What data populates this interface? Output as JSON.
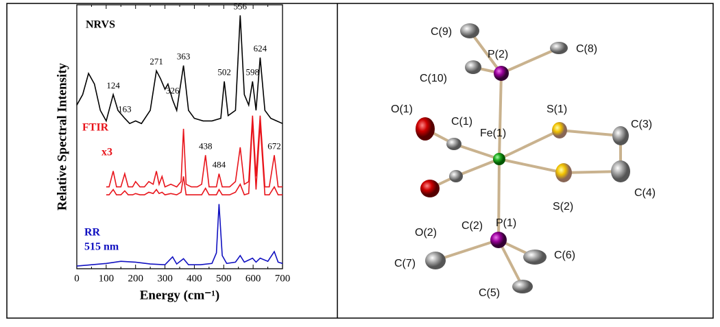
{
  "chart_data": {
    "type": "line",
    "x_label": "Energy (cm⁻¹)",
    "y_label": "Relative Spectral Intensity",
    "xlim": [
      0,
      700
    ],
    "xticks": [
      0,
      100,
      200,
      300,
      400,
      500,
      600,
      700
    ],
    "ylim": [
      0,
      100
    ],
    "series": [
      {
        "name": "NRVS",
        "color": "#000000",
        "x": [
          0,
          20,
          40,
          60,
          80,
          100,
          124,
          140,
          163,
          180,
          200,
          220,
          250,
          271,
          285,
          300,
          310,
          326,
          340,
          363,
          380,
          400,
          430,
          460,
          490,
          502,
          515,
          540,
          556,
          570,
          585,
          598,
          610,
          624,
          640,
          660,
          680,
          700
        ],
        "values": [
          62,
          66,
          74,
          70,
          60,
          56,
          66,
          60,
          57,
          55,
          56,
          55,
          60,
          75,
          72,
          68,
          70,
          64,
          60,
          77,
          60,
          57,
          56,
          56,
          57,
          71,
          58,
          60,
          96,
          66,
          62,
          71,
          60,
          80,
          60,
          57,
          56,
          55
        ],
        "peaks": [
          124,
          163,
          271,
          326,
          363,
          502,
          556,
          598,
          624
        ]
      },
      {
        "name": "FTIR",
        "note": "x3",
        "color": "#e8141b",
        "x": [
          100,
          110,
          124,
          135,
          150,
          163,
          175,
          190,
          200,
          215,
          230,
          245,
          260,
          271,
          280,
          290,
          300,
          320,
          340,
          355,
          363,
          372,
          390,
          410,
          425,
          438,
          450,
          465,
          475,
          484,
          495,
          520,
          540,
          556,
          570,
          585,
          598,
          610,
          624,
          640,
          655,
          672,
          685,
          700
        ],
        "values": [
          28,
          28,
          30,
          28,
          28,
          29.5,
          28,
          28,
          28.5,
          28,
          28,
          29,
          28.5,
          30,
          28.5,
          29,
          28,
          28.5,
          28,
          29,
          35,
          28,
          28,
          28,
          28,
          30.5,
          28,
          28,
          28,
          30,
          28,
          28,
          29,
          32,
          28,
          28.5,
          56,
          30,
          55,
          28,
          28,
          31,
          28,
          28
        ],
        "values_x3": [
          31,
          31,
          37,
          31,
          31,
          36,
          31,
          31,
          33,
          31,
          31,
          33,
          32,
          37,
          32,
          35,
          31,
          32,
          31,
          33,
          53,
          32,
          31,
          31,
          32,
          43,
          31,
          31,
          31,
          36,
          31,
          31,
          33,
          46,
          32,
          33,
          58,
          35,
          58,
          31,
          31,
          43,
          31,
          31
        ],
        "peaks": [
          438,
          484,
          672
        ]
      },
      {
        "name": "RR",
        "note": "515 nm",
        "color": "#1010c0",
        "x": [
          0,
          50,
          100,
          150,
          200,
          250,
          300,
          326,
          340,
          363,
          380,
          420,
          460,
          475,
          484,
          495,
          510,
          540,
          556,
          570,
          598,
          610,
          624,
          650,
          672,
          685,
          700
        ],
        "values": [
          1,
          1.5,
          2,
          2.8,
          2.5,
          1.8,
          1.5,
          4.5,
          1.8,
          3.8,
          1.5,
          1.5,
          2,
          6,
          24.5,
          5,
          2,
          2.5,
          5,
          2.5,
          4,
          2.5,
          4,
          2.8,
          6.5,
          2.5,
          2
        ]
      }
    ]
  },
  "structure": {
    "labels": [
      "C(9)",
      "P(2)",
      "C(8)",
      "C(10)",
      "O(1)",
      "C(1)",
      "Fe(1)",
      "S(1)",
      "C(3)",
      "C(2)",
      "S(2)",
      "C(4)",
      "O(2)",
      "P(1)",
      "C(7)",
      "C(6)",
      "C(5)"
    ]
  }
}
